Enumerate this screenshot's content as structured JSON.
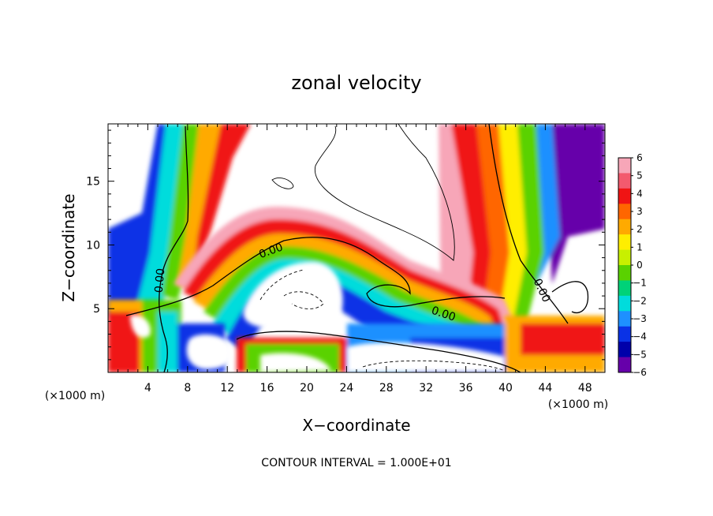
{
  "chart_data": {
    "type": "heatmap",
    "title": "zonal velocity",
    "xlabel": "X−coordinate",
    "ylabel": "Z−coordinate",
    "x_unit_left": "(×1000 m)",
    "x_unit_right": "(×1000 m)",
    "xlim": [
      0,
      50
    ],
    "ylim": [
      0,
      19.5
    ],
    "x_ticks": [
      4,
      8,
      12,
      16,
      20,
      24,
      28,
      32,
      36,
      40,
      44,
      48
    ],
    "x_tick_labels": [
      "4",
      "8",
      "12",
      "16",
      "20",
      "24",
      "28",
      "32",
      "36",
      "40",
      "44",
      "48"
    ],
    "y_ticks": [
      5,
      10,
      15
    ],
    "y_tick_labels": [
      "5",
      "10",
      "15"
    ],
    "colorbar": {
      "min": -6,
      "max": 6,
      "tick_labels": [
        "6",
        "5",
        "4",
        "3",
        "2",
        "1",
        "0",
        "−1",
        "−2",
        "−3",
        "−4",
        "−5",
        "−6"
      ],
      "colors": [
        "#f7a6b8",
        "#f35a6e",
        "#f01414",
        "#ff6600",
        "#ffaa00",
        "#ffee00",
        "#c8f000",
        "#5ad200",
        "#00d278",
        "#00dcdc",
        "#1e90ff",
        "#0a32e6",
        "#0000aa",
        "#6600aa"
      ]
    },
    "contour_labels": [
      "0.00",
      "0.00",
      "0.00",
      "0.00"
    ],
    "contour_interval_text": "CONTOUR INTERVAL = 1.000E+01",
    "grid": false
  }
}
